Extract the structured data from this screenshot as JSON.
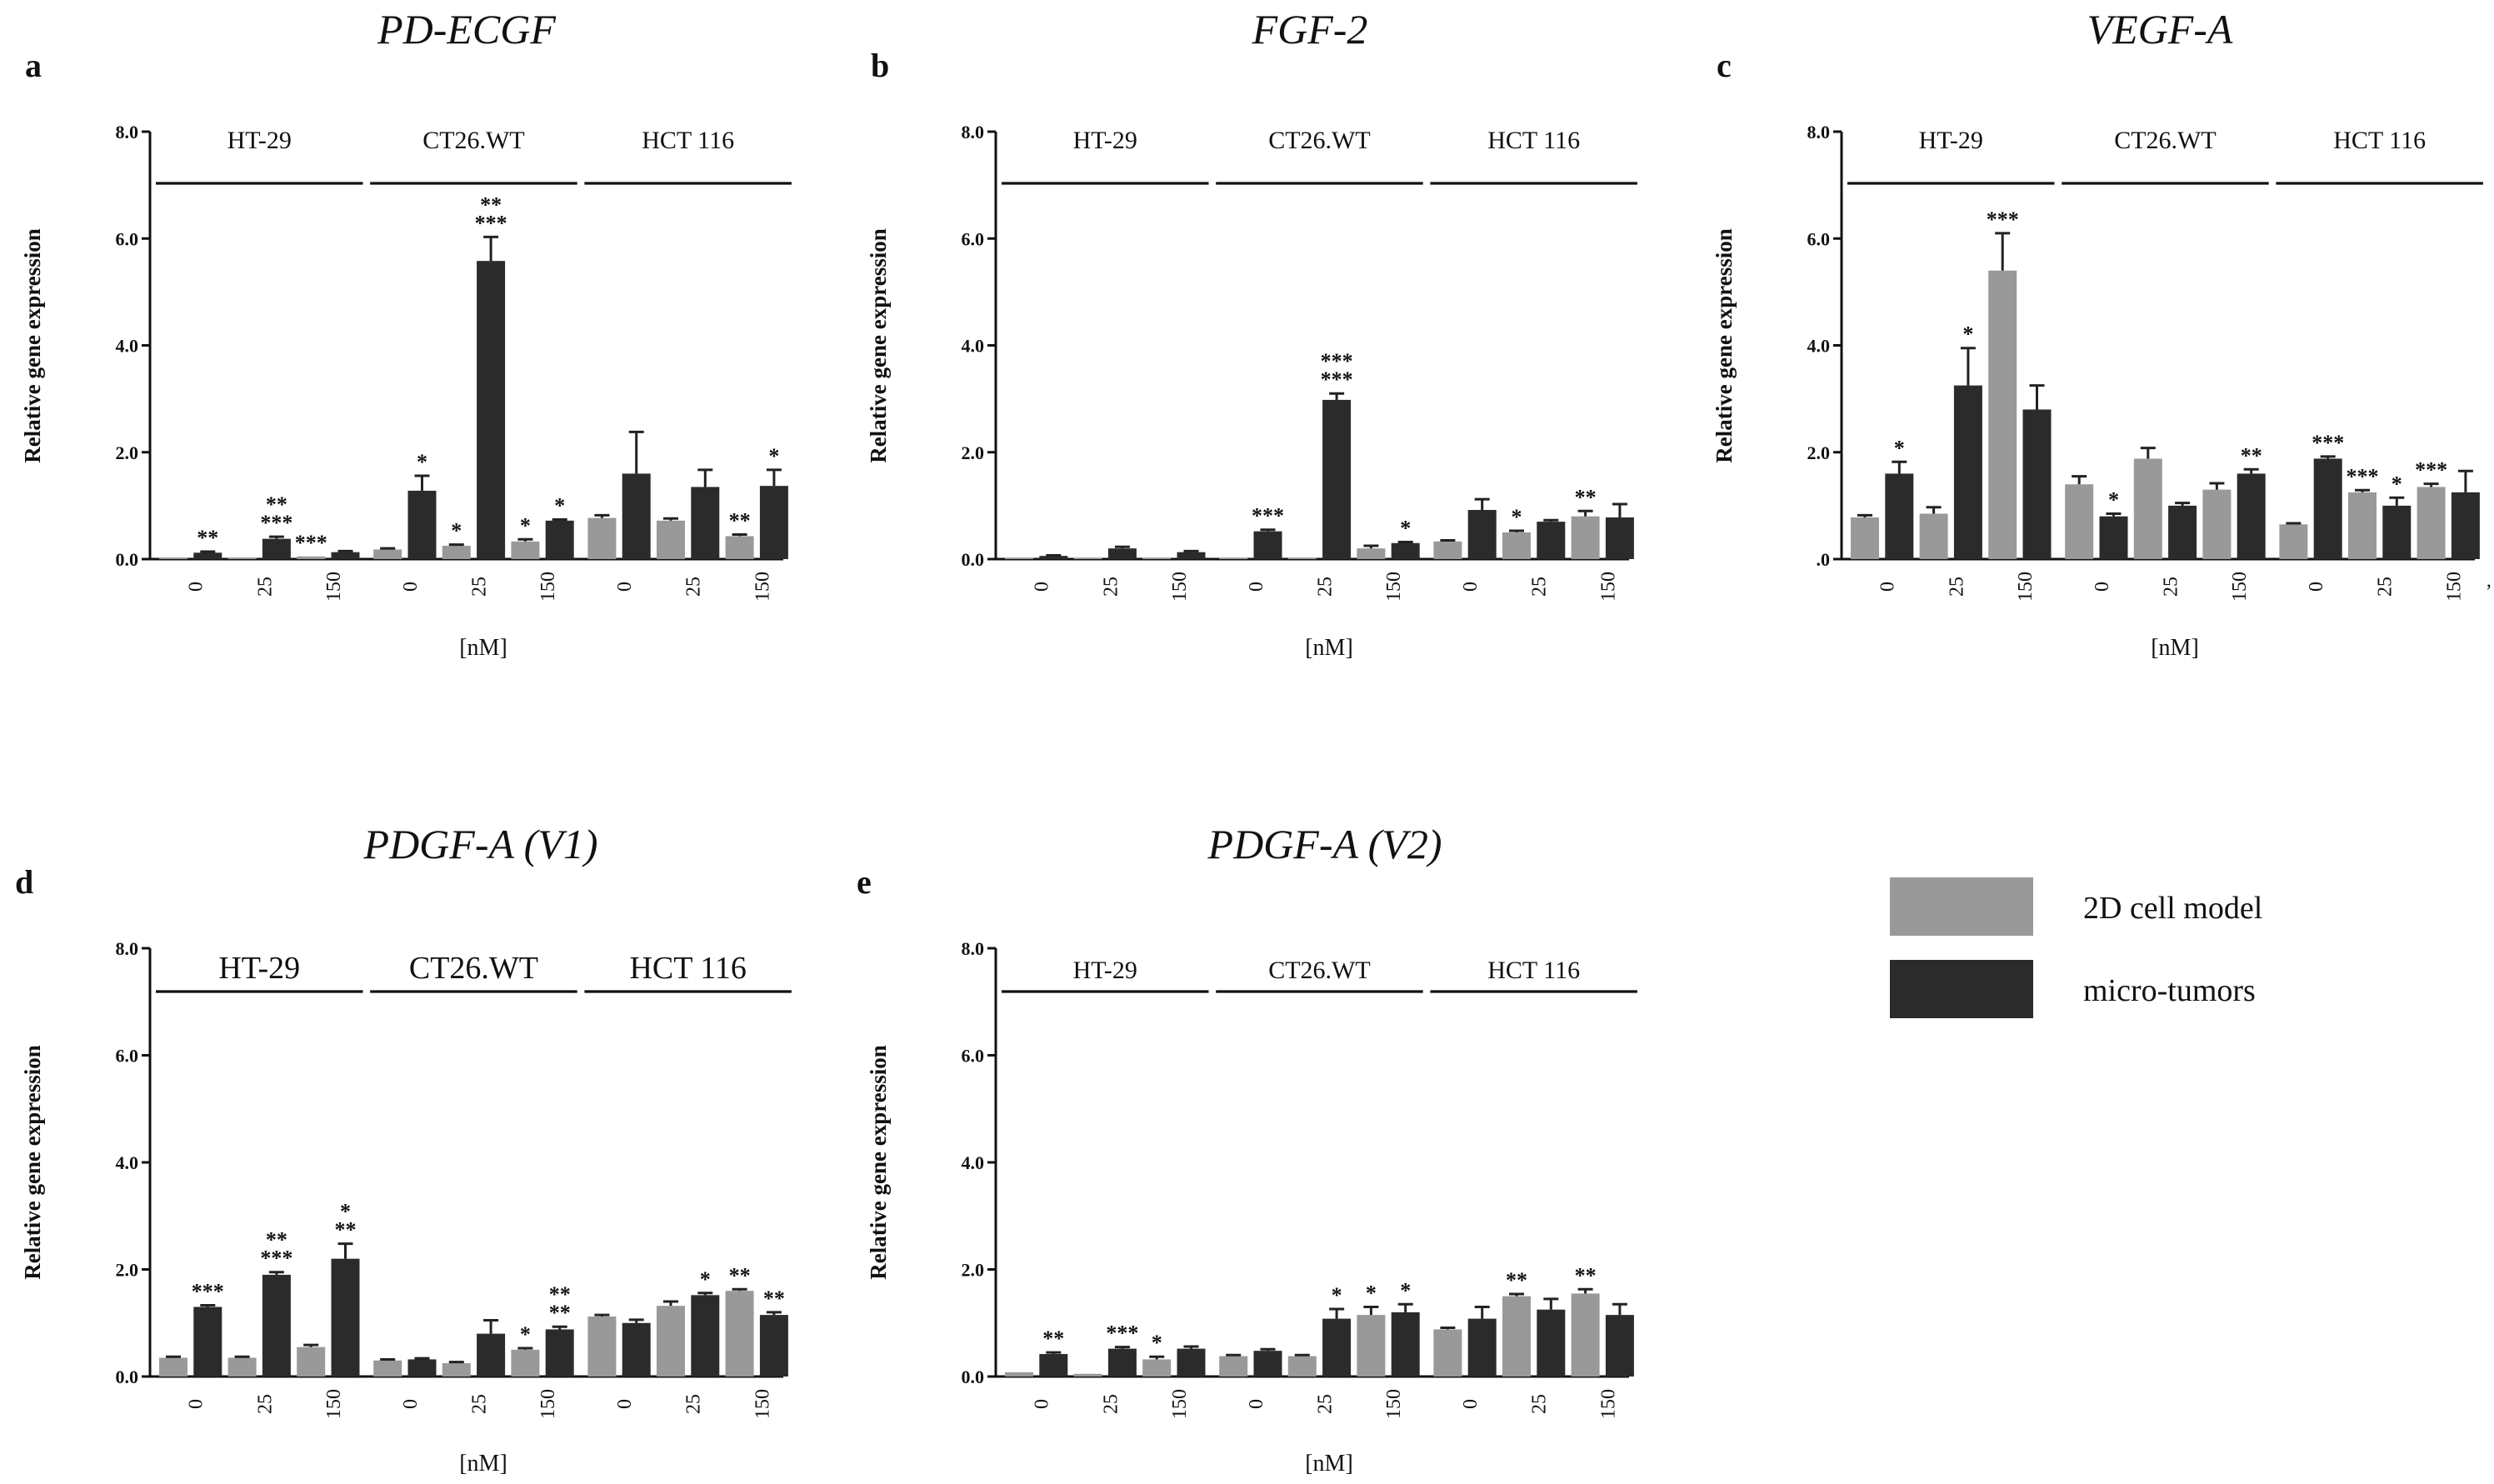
{
  "legend": {
    "items": [
      {
        "label": "2D cell model",
        "color": "#999999"
      },
      {
        "label": "micro-tumors",
        "color": "#2b2b2b"
      }
    ]
  },
  "chart_data": [
    {
      "type": "bar",
      "letter": "a",
      "title": "PD-ECGF",
      "ylabel": "Relative gene expression",
      "xlabel": "[nM]",
      "ylim": [
        0,
        8
      ],
      "yticks": [
        "0.0",
        "2.0",
        "4.0",
        "6.0",
        "8.0"
      ],
      "groups": [
        "HT-29",
        "CT26.WT",
        "HCT 116"
      ],
      "doses": [
        "0",
        "25",
        "150"
      ],
      "bars": [
        {
          "group": "HT-29",
          "dose": "0",
          "series": "2D cell model",
          "value": 0.03,
          "err": 0
        },
        {
          "group": "HT-29",
          "dose": "0",
          "series": "micro-tumors",
          "value": 0.12,
          "err": 0.02,
          "sig": [
            "**"
          ]
        },
        {
          "group": "HT-29",
          "dose": "25",
          "series": "2D cell model",
          "value": 0.03,
          "err": 0
        },
        {
          "group": "HT-29",
          "dose": "25",
          "series": "micro-tumors",
          "value": 0.38,
          "err": 0.04,
          "sig": [
            "**",
            "***"
          ]
        },
        {
          "group": "HT-29",
          "dose": "150",
          "series": "2D cell model",
          "value": 0.05,
          "err": 0,
          "sig": [
            "***"
          ]
        },
        {
          "group": "HT-29",
          "dose": "150",
          "series": "micro-tumors",
          "value": 0.13,
          "err": 0.02
        },
        {
          "group": "CT26.WT",
          "dose": "0",
          "series": "2D cell model",
          "value": 0.18,
          "err": 0.02
        },
        {
          "group": "CT26.WT",
          "dose": "0",
          "series": "micro-tumors",
          "value": 1.28,
          "err": 0.28,
          "sig": [
            "*"
          ]
        },
        {
          "group": "CT26.WT",
          "dose": "25",
          "series": "2D cell model",
          "value": 0.25,
          "err": 0.02,
          "sig": [
            "*"
          ]
        },
        {
          "group": "CT26.WT",
          "dose": "25",
          "series": "micro-tumors",
          "value": 5.58,
          "err": 0.45,
          "sig": [
            "**",
            "***"
          ]
        },
        {
          "group": "CT26.WT",
          "dose": "150",
          "series": "2D cell model",
          "value": 0.33,
          "err": 0.04,
          "sig": [
            "*"
          ]
        },
        {
          "group": "CT26.WT",
          "dose": "150",
          "series": "micro-tumors",
          "value": 0.72,
          "err": 0.02,
          "sig": [
            "*"
          ]
        },
        {
          "group": "HCT 116",
          "dose": "0",
          "series": "2D cell model",
          "value": 0.77,
          "err": 0.05
        },
        {
          "group": "HCT 116",
          "dose": "0",
          "series": "micro-tumors",
          "value": 1.6,
          "err": 0.78
        },
        {
          "group": "HCT 116",
          "dose": "25",
          "series": "2D cell model",
          "value": 0.72,
          "err": 0.04
        },
        {
          "group": "HCT 116",
          "dose": "25",
          "series": "micro-tumors",
          "value": 1.35,
          "err": 0.32
        },
        {
          "group": "HCT 116",
          "dose": "150",
          "series": "2D cell model",
          "value": 0.43,
          "err": 0.03,
          "sig": [
            "**"
          ]
        },
        {
          "group": "HCT 116",
          "dose": "150",
          "series": "micro-tumors",
          "value": 1.37,
          "err": 0.3,
          "sig": [
            "*"
          ]
        }
      ]
    },
    {
      "type": "bar",
      "letter": "b",
      "title": "FGF-2",
      "ylabel": "Relative gene expression",
      "xlabel": "[nM]",
      "ylim": [
        0,
        8
      ],
      "yticks": [
        "0.0",
        "2.0",
        "4.0",
        "6.0",
        "8.0"
      ],
      "groups": [
        "HT-29",
        "CT26.WT",
        "HCT 116"
      ],
      "doses": [
        "0",
        "25",
        "150"
      ],
      "bars": [
        {
          "group": "HT-29",
          "dose": "0",
          "series": "2D cell model",
          "value": 0.02,
          "err": 0
        },
        {
          "group": "HT-29",
          "dose": "0",
          "series": "micro-tumors",
          "value": 0.06,
          "err": 0.01
        },
        {
          "group": "HT-29",
          "dose": "25",
          "series": "2D cell model",
          "value": 0.02,
          "err": 0
        },
        {
          "group": "HT-29",
          "dose": "25",
          "series": "micro-tumors",
          "value": 0.2,
          "err": 0.03
        },
        {
          "group": "HT-29",
          "dose": "150",
          "series": "2D cell model",
          "value": 0.02,
          "err": 0
        },
        {
          "group": "HT-29",
          "dose": "150",
          "series": "micro-tumors",
          "value": 0.13,
          "err": 0.02
        },
        {
          "group": "CT26.WT",
          "dose": "0",
          "series": "2D cell model",
          "value": 0.02,
          "err": 0
        },
        {
          "group": "CT26.WT",
          "dose": "0",
          "series": "micro-tumors",
          "value": 0.52,
          "err": 0.03,
          "sig": [
            "***"
          ]
        },
        {
          "group": "CT26.WT",
          "dose": "25",
          "series": "2D cell model",
          "value": 0.02,
          "err": 0
        },
        {
          "group": "CT26.WT",
          "dose": "25",
          "series": "micro-tumors",
          "value": 2.98,
          "err": 0.12,
          "sig": [
            "***",
            "***"
          ]
        },
        {
          "group": "CT26.WT",
          "dose": "150",
          "series": "2D cell model",
          "value": 0.2,
          "err": 0.05
        },
        {
          "group": "CT26.WT",
          "dose": "150",
          "series": "micro-tumors",
          "value": 0.3,
          "err": 0.02,
          "sig": [
            "*"
          ]
        },
        {
          "group": "HCT 116",
          "dose": "0",
          "series": "2D cell model",
          "value": 0.33,
          "err": 0.02
        },
        {
          "group": "HCT 116",
          "dose": "0",
          "series": "micro-tumors",
          "value": 0.92,
          "err": 0.2
        },
        {
          "group": "HCT 116",
          "dose": "25",
          "series": "2D cell model",
          "value": 0.5,
          "err": 0.03,
          "sig": [
            "*"
          ]
        },
        {
          "group": "HCT 116",
          "dose": "25",
          "series": "micro-tumors",
          "value": 0.7,
          "err": 0.03
        },
        {
          "group": "HCT 116",
          "dose": "150",
          "series": "2D cell model",
          "value": 0.8,
          "err": 0.1,
          "sig": [
            "**"
          ]
        },
        {
          "group": "HCT 116",
          "dose": "150",
          "series": "micro-tumors",
          "value": 0.78,
          "err": 0.25
        }
      ]
    },
    {
      "type": "bar",
      "letter": "c",
      "title": "VEGF-A",
      "ylabel": "Relative gene expression",
      "xlabel": "[nM]",
      "ylim": [
        0,
        8
      ],
      "yticks": [
        ".0",
        "2.0",
        "4.0",
        "6.0",
        "8.0"
      ],
      "groups": [
        "HT-29",
        "CT26.WT",
        "HCT 116"
      ],
      "doses": [
        "0",
        "25",
        "150"
      ],
      "extra_xtick": ",",
      "bars": [
        {
          "group": "HT-29",
          "dose": "0",
          "series": "2D cell model",
          "value": 0.78,
          "err": 0.04
        },
        {
          "group": "HT-29",
          "dose": "0",
          "series": "micro-tumors",
          "value": 1.6,
          "err": 0.22,
          "sig": [
            "*"
          ]
        },
        {
          "group": "HT-29",
          "dose": "25",
          "series": "2D cell model",
          "value": 0.85,
          "err": 0.12
        },
        {
          "group": "HT-29",
          "dose": "25",
          "series": "micro-tumors",
          "value": 3.25,
          "err": 0.7,
          "sig": [
            "*"
          ]
        },
        {
          "group": "HT-29",
          "dose": "150",
          "series": "2D cell model",
          "value": 5.4,
          "err": 0.7,
          "sig": [
            "***"
          ]
        },
        {
          "group": "HT-29",
          "dose": "150",
          "series": "micro-tumors",
          "value": 2.8,
          "err": 0.45
        },
        {
          "group": "CT26.WT",
          "dose": "0",
          "series": "2D cell model",
          "value": 1.4,
          "err": 0.15
        },
        {
          "group": "CT26.WT",
          "dose": "0",
          "series": "micro-tumors",
          "value": 0.8,
          "err": 0.05,
          "sig": [
            "*"
          ]
        },
        {
          "group": "CT26.WT",
          "dose": "25",
          "series": "2D cell model",
          "value": 1.88,
          "err": 0.2
        },
        {
          "group": "CT26.WT",
          "dose": "25",
          "series": "micro-tumors",
          "value": 1.0,
          "err": 0.05
        },
        {
          "group": "CT26.WT",
          "dose": "150",
          "series": "2D cell model",
          "value": 1.3,
          "err": 0.12
        },
        {
          "group": "CT26.WT",
          "dose": "150",
          "series": "micro-tumors",
          "value": 1.6,
          "err": 0.08,
          "sig": [
            "**"
          ]
        },
        {
          "group": "HCT 116",
          "dose": "0",
          "series": "2D cell model",
          "value": 0.65,
          "err": 0.02
        },
        {
          "group": "HCT 116",
          "dose": "0",
          "series": "micro-tumors",
          "value": 1.88,
          "err": 0.04,
          "sig": [
            "***"
          ]
        },
        {
          "group": "HCT 116",
          "dose": "25",
          "series": "2D cell model",
          "value": 1.25,
          "err": 0.04,
          "sig": [
            "***"
          ]
        },
        {
          "group": "HCT 116",
          "dose": "25",
          "series": "micro-tumors",
          "value": 1.0,
          "err": 0.15,
          "sig": [
            "*"
          ]
        },
        {
          "group": "HCT 116",
          "dose": "150",
          "series": "2D cell model",
          "value": 1.35,
          "err": 0.06,
          "sig": [
            "***"
          ]
        },
        {
          "group": "HCT 116",
          "dose": "150",
          "series": "micro-tumors",
          "value": 1.25,
          "err": 0.4
        }
      ]
    },
    {
      "type": "bar",
      "letter": "d",
      "title": "PDGF-A (V1)",
      "ylabel": "Relative gene expression",
      "xlabel": "[nM]",
      "ylim": [
        0,
        8
      ],
      "yticks": [
        "0.0",
        "2.0",
        "4.0",
        "6.0",
        "8.0"
      ],
      "groups": [
        "HT-29",
        "CT26.WT",
        "HCT 116"
      ],
      "doses": [
        "0",
        "25",
        "150"
      ],
      "bars": [
        {
          "group": "HT-29",
          "dose": "0",
          "series": "2D cell model",
          "value": 0.35,
          "err": 0.02
        },
        {
          "group": "HT-29",
          "dose": "0",
          "series": "micro-tumors",
          "value": 1.3,
          "err": 0.03,
          "sig": [
            "***"
          ]
        },
        {
          "group": "HT-29",
          "dose": "25",
          "series": "2D cell model",
          "value": 0.35,
          "err": 0.02
        },
        {
          "group": "HT-29",
          "dose": "25",
          "series": "micro-tumors",
          "value": 1.9,
          "err": 0.05,
          "sig": [
            "**",
            "***"
          ]
        },
        {
          "group": "HT-29",
          "dose": "150",
          "series": "2D cell model",
          "value": 0.55,
          "err": 0.04
        },
        {
          "group": "HT-29",
          "dose": "150",
          "series": "micro-tumors",
          "value": 2.2,
          "err": 0.28,
          "sig": [
            "*",
            "**"
          ]
        },
        {
          "group": "CT26.WT",
          "dose": "0",
          "series": "2D cell model",
          "value": 0.3,
          "err": 0.02
        },
        {
          "group": "CT26.WT",
          "dose": "0",
          "series": "micro-tumors",
          "value": 0.32,
          "err": 0.02
        },
        {
          "group": "CT26.WT",
          "dose": "25",
          "series": "2D cell model",
          "value": 0.25,
          "err": 0.02
        },
        {
          "group": "CT26.WT",
          "dose": "25",
          "series": "micro-tumors",
          "value": 0.8,
          "err": 0.25
        },
        {
          "group": "CT26.WT",
          "dose": "150",
          "series": "2D cell model",
          "value": 0.5,
          "err": 0.03,
          "sig": [
            "*"
          ]
        },
        {
          "group": "CT26.WT",
          "dose": "150",
          "series": "micro-tumors",
          "value": 0.88,
          "err": 0.05,
          "sig": [
            "**",
            "**"
          ]
        },
        {
          "group": "HCT 116",
          "dose": "0",
          "series": "2D cell model",
          "value": 1.12,
          "err": 0.03
        },
        {
          "group": "HCT 116",
          "dose": "0",
          "series": "micro-tumors",
          "value": 1.0,
          "err": 0.06
        },
        {
          "group": "HCT 116",
          "dose": "25",
          "series": "2D cell model",
          "value": 1.32,
          "err": 0.08
        },
        {
          "group": "HCT 116",
          "dose": "25",
          "series": "micro-tumors",
          "value": 1.52,
          "err": 0.04,
          "sig": [
            "*"
          ]
        },
        {
          "group": "HCT 116",
          "dose": "150",
          "series": "2D cell model",
          "value": 1.6,
          "err": 0.03,
          "sig": [
            "**"
          ]
        },
        {
          "group": "HCT 116",
          "dose": "150",
          "series": "micro-tumors",
          "value": 1.15,
          "err": 0.05,
          "sig": [
            "**"
          ]
        }
      ]
    },
    {
      "type": "bar",
      "letter": "e",
      "title": "PDGF-A (V2)",
      "ylabel": "Relative gene expression",
      "xlabel": "[nM]",
      "ylim": [
        0,
        8
      ],
      "yticks": [
        "0.0",
        "2.0",
        "4.0",
        "6.0",
        "8.0"
      ],
      "groups": [
        "HT-29",
        "CT26.WT",
        "HCT 116"
      ],
      "doses": [
        "0",
        "25",
        "150"
      ],
      "bars": [
        {
          "group": "HT-29",
          "dose": "0",
          "series": "2D cell model",
          "value": 0.08,
          "err": 0
        },
        {
          "group": "HT-29",
          "dose": "0",
          "series": "micro-tumors",
          "value": 0.42,
          "err": 0.03,
          "sig": [
            "**"
          ]
        },
        {
          "group": "HT-29",
          "dose": "25",
          "series": "2D cell model",
          "value": 0.05,
          "err": 0
        },
        {
          "group": "HT-29",
          "dose": "25",
          "series": "micro-tumors",
          "value": 0.52,
          "err": 0.03,
          "sig": [
            "***"
          ]
        },
        {
          "group": "HT-29",
          "dose": "150",
          "series": "2D cell model",
          "value": 0.32,
          "err": 0.05,
          "sig": [
            "*"
          ]
        },
        {
          "group": "HT-29",
          "dose": "150",
          "series": "micro-tumors",
          "value": 0.52,
          "err": 0.04
        },
        {
          "group": "CT26.WT",
          "dose": "0",
          "series": "2D cell model",
          "value": 0.38,
          "err": 0.02
        },
        {
          "group": "CT26.WT",
          "dose": "0",
          "series": "micro-tumors",
          "value": 0.48,
          "err": 0.03
        },
        {
          "group": "CT26.WT",
          "dose": "25",
          "series": "2D cell model",
          "value": 0.38,
          "err": 0.02
        },
        {
          "group": "CT26.WT",
          "dose": "25",
          "series": "micro-tumors",
          "value": 1.08,
          "err": 0.18,
          "sig": [
            "*"
          ]
        },
        {
          "group": "CT26.WT",
          "dose": "150",
          "series": "2D cell model",
          "value": 1.15,
          "err": 0.15,
          "sig": [
            "*"
          ]
        },
        {
          "group": "CT26.WT",
          "dose": "150",
          "series": "micro-tumors",
          "value": 1.2,
          "err": 0.15,
          "sig": [
            "*"
          ]
        },
        {
          "group": "HCT 116",
          "dose": "0",
          "series": "2D cell model",
          "value": 0.88,
          "err": 0.03
        },
        {
          "group": "HCT 116",
          "dose": "0",
          "series": "micro-tumors",
          "value": 1.08,
          "err": 0.22
        },
        {
          "group": "HCT 116",
          "dose": "25",
          "series": "2D cell model",
          "value": 1.5,
          "err": 0.04,
          "sig": [
            "**"
          ]
        },
        {
          "group": "HCT 116",
          "dose": "25",
          "series": "micro-tumors",
          "value": 1.25,
          "err": 0.2
        },
        {
          "group": "HCT 116",
          "dose": "150",
          "series": "2D cell model",
          "value": 1.55,
          "err": 0.08,
          "sig": [
            "**"
          ]
        },
        {
          "group": "HCT 116",
          "dose": "150",
          "series": "micro-tumors",
          "value": 1.15,
          "err": 0.2
        }
      ]
    }
  ]
}
